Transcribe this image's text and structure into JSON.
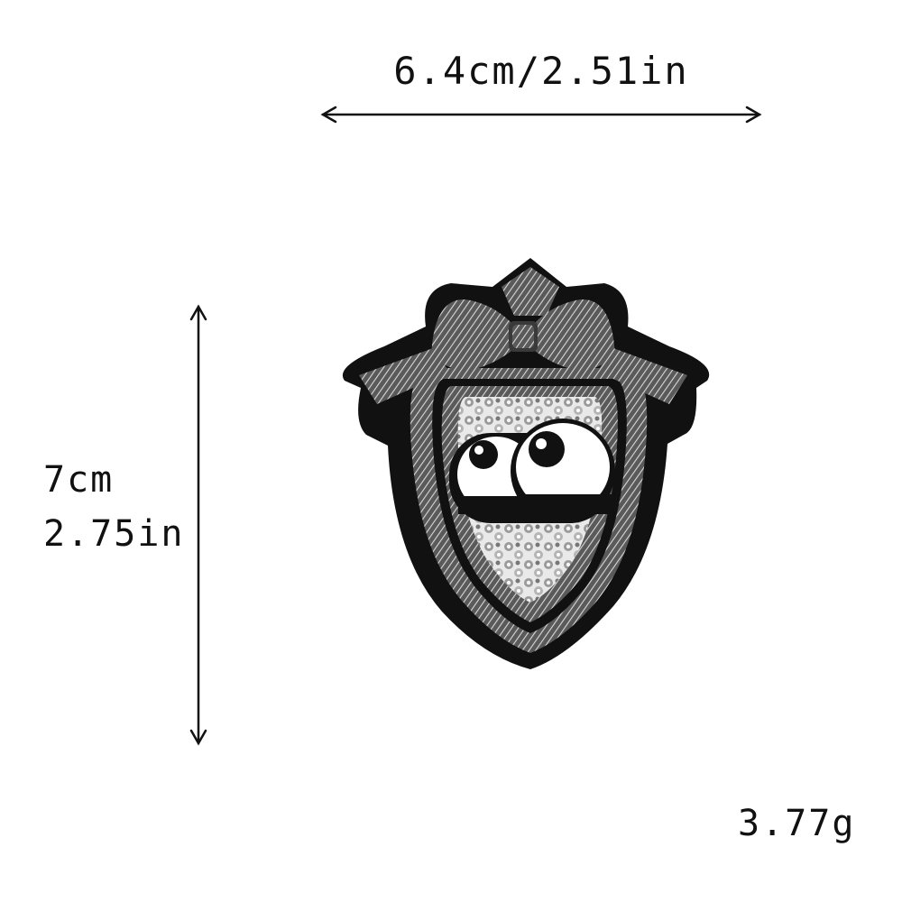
{
  "dimensions": {
    "width_text": "6.4cm/2.51in",
    "height_cm_text": "7cm",
    "height_in_text": "2.75in",
    "weight_text": "3.77g"
  },
  "image": {
    "subject_icon": "patch-icon",
    "colors": {
      "border": "#111111",
      "stitch": "#8c8c8c",
      "rhinestone": "#c8c8c8",
      "eye_white": "#ffffff",
      "pupil": "#111111"
    }
  }
}
